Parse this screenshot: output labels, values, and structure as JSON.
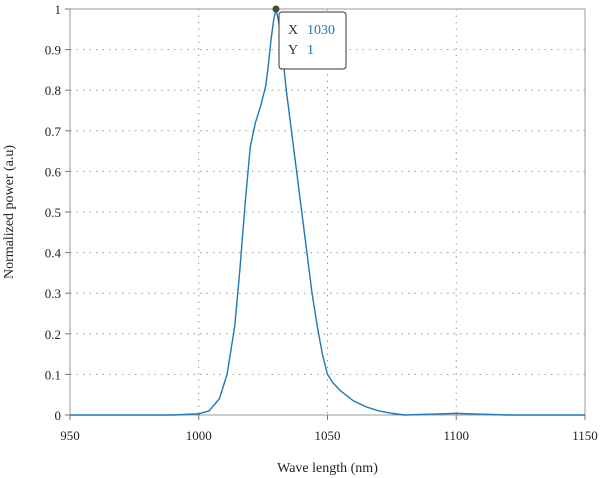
{
  "chart_data": {
    "type": "line",
    "xlabel": "Wave length (nm)",
    "ylabel": "Normalized power (a.u)",
    "xlim": [
      950,
      1150
    ],
    "ylim": [
      0,
      1
    ],
    "x_ticks": [
      950,
      1000,
      1050,
      1100,
      1150
    ],
    "y_ticks": [
      0,
      0.1,
      0.2,
      0.3,
      0.4,
      0.5,
      0.6,
      0.7,
      0.8,
      0.9,
      1
    ],
    "grid": "dotted",
    "line_color": "#1f77b4",
    "series": [
      {
        "x": [
          950,
          990,
          1000,
          1004,
          1008,
          1011,
          1014,
          1016,
          1018,
          1020,
          1022,
          1024,
          1026,
          1027,
          1028,
          1029,
          1030,
          1031,
          1032,
          1033,
          1034,
          1036,
          1038,
          1040,
          1042,
          1044,
          1046,
          1048,
          1050,
          1052,
          1055,
          1060,
          1065,
          1070,
          1075,
          1080,
          1090,
          1100,
          1110,
          1120,
          1150
        ],
        "y": [
          0,
          0,
          0.003,
          0.01,
          0.04,
          0.1,
          0.22,
          0.36,
          0.52,
          0.66,
          0.72,
          0.76,
          0.81,
          0.86,
          0.92,
          0.97,
          1.0,
          0.97,
          0.92,
          0.86,
          0.8,
          0.7,
          0.6,
          0.5,
          0.4,
          0.3,
          0.22,
          0.15,
          0.1,
          0.08,
          0.06,
          0.035,
          0.02,
          0.01,
          0.004,
          0.0,
          0.002,
          0.004,
          0.002,
          0.0,
          0.0
        ]
      }
    ],
    "tooltip": {
      "x_label": "X",
      "x_value": "1030",
      "y_label": "Y",
      "y_value": "1",
      "point": [
        1030,
        1
      ]
    }
  }
}
